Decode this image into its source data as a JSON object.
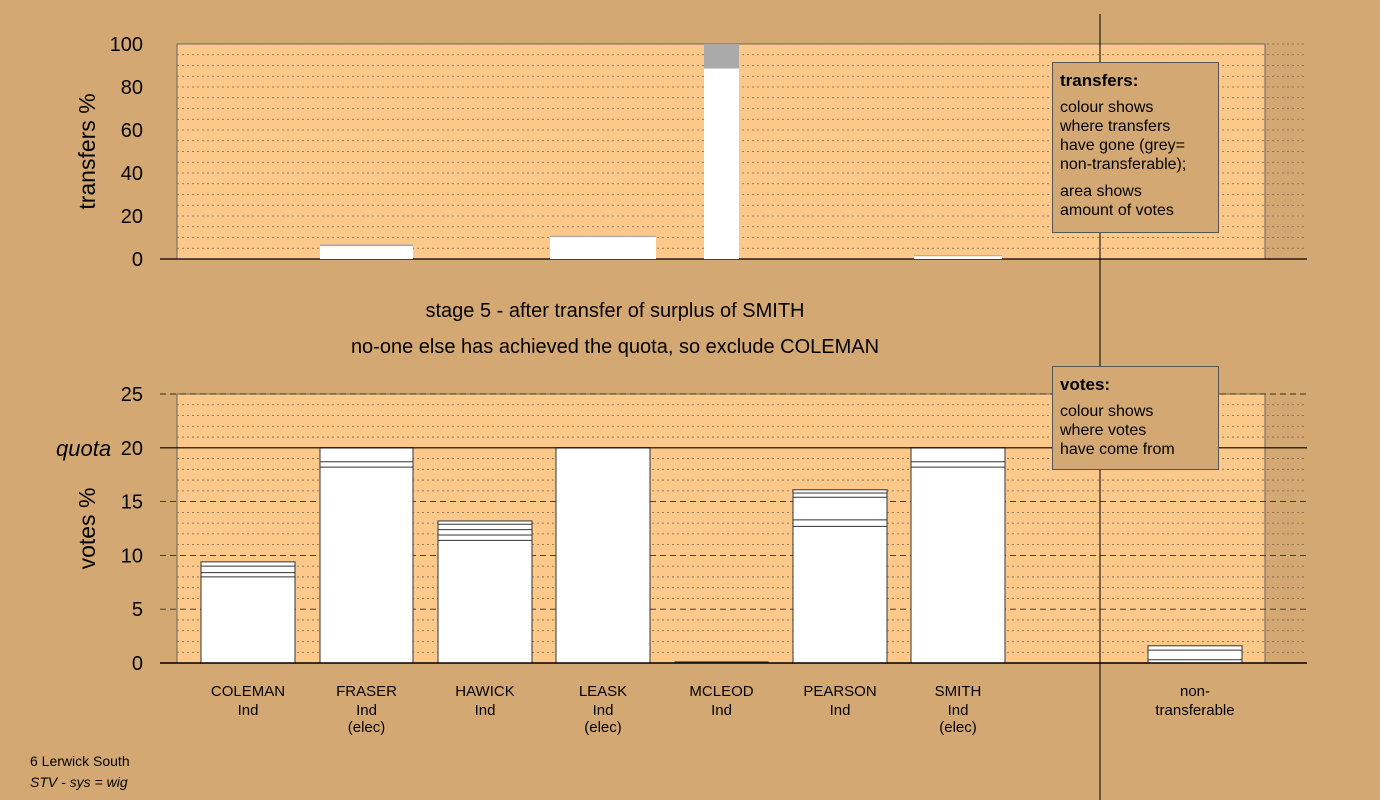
{
  "chart_data": [
    {
      "type": "bar",
      "name": "transfers",
      "ylabel": "transfers %",
      "ylim": [
        0,
        100
      ],
      "yticks": [
        0,
        20,
        40,
        60,
        80,
        100
      ],
      "categories": [
        "COLEMAN",
        "FRASER",
        "HAWICK",
        "LEASK",
        "MCLEOD",
        "PEARSON",
        "SMITH",
        "non-transferable"
      ],
      "values": [
        0,
        6.8,
        0,
        10.8,
        100,
        0,
        1.8,
        0
      ],
      "series": [
        {
          "role": "transferable",
          "values": [
            0,
            6.0,
            0,
            10.2,
            88.6,
            0,
            1.3,
            0
          ]
        },
        {
          "role": "non-transferable",
          "values": [
            0,
            0.8,
            0,
            0.6,
            11.4,
            0,
            0.5,
            0
          ]
        }
      ],
      "grid": true
    },
    {
      "type": "bar",
      "name": "votes",
      "ylabel": "votes %",
      "ylim": [
        0,
        25
      ],
      "yticks": [
        0,
        5,
        10,
        15,
        20,
        25
      ],
      "quota": 20,
      "quota_label": "quota",
      "categories": [
        "COLEMAN",
        "FRASER",
        "HAWICK",
        "LEASK",
        "MCLEOD",
        "PEARSON",
        "SMITH",
        "non-transferable"
      ],
      "values": [
        9.4,
        20,
        13.2,
        20,
        0.1,
        16.1,
        20,
        1.6
      ],
      "segment_lines": [
        [
          8.0,
          8.4,
          9.0
        ],
        [
          18.2,
          18.7
        ],
        [
          11.4,
          11.9,
          12.4,
          12.9
        ],
        [],
        [],
        [
          12.7,
          13.3,
          15.4,
          15.8
        ],
        [
          18.2,
          18.7
        ],
        [
          0.3,
          1.2
        ]
      ],
      "grid": true
    }
  ],
  "candidates": [
    {
      "name": "COLEMAN",
      "party": "Ind",
      "status": ""
    },
    {
      "name": "FRASER",
      "party": "Ind",
      "status": "(elec)"
    },
    {
      "name": "HAWICK",
      "party": "Ind",
      "status": ""
    },
    {
      "name": "LEASK",
      "party": "Ind",
      "status": "(elec)"
    },
    {
      "name": "MCLEOD",
      "party": "Ind",
      "status": ""
    },
    {
      "name": "PEARSON",
      "party": "Ind",
      "status": ""
    },
    {
      "name": "SMITH",
      "party": "Ind",
      "status": "(elec)"
    }
  ],
  "nontransferable_label": [
    "non-",
    "transferable"
  ],
  "stage": {
    "line1": "stage 5 - after transfer of surplus of SMITH",
    "line2": "no-one else has achieved the quota, so exclude COLEMAN"
  },
  "legend_transfers": {
    "title": "transfers:",
    "text1": [
      "colour shows",
      "where transfers",
      "have gone (grey=",
      "non-transferable);"
    ],
    "text2": [
      "area shows",
      "amount of votes"
    ]
  },
  "legend_votes": {
    "title": "votes:",
    "text1": [
      "colour shows",
      "where votes",
      "have come from"
    ]
  },
  "footer": {
    "area": "6 Lerwick South",
    "system": "STV - sys = wig"
  },
  "colors": {
    "background": "#d4a872",
    "plot": "#fdc98b",
    "bar": "#ffffff",
    "nontransferable": "#aaaaaa"
  }
}
